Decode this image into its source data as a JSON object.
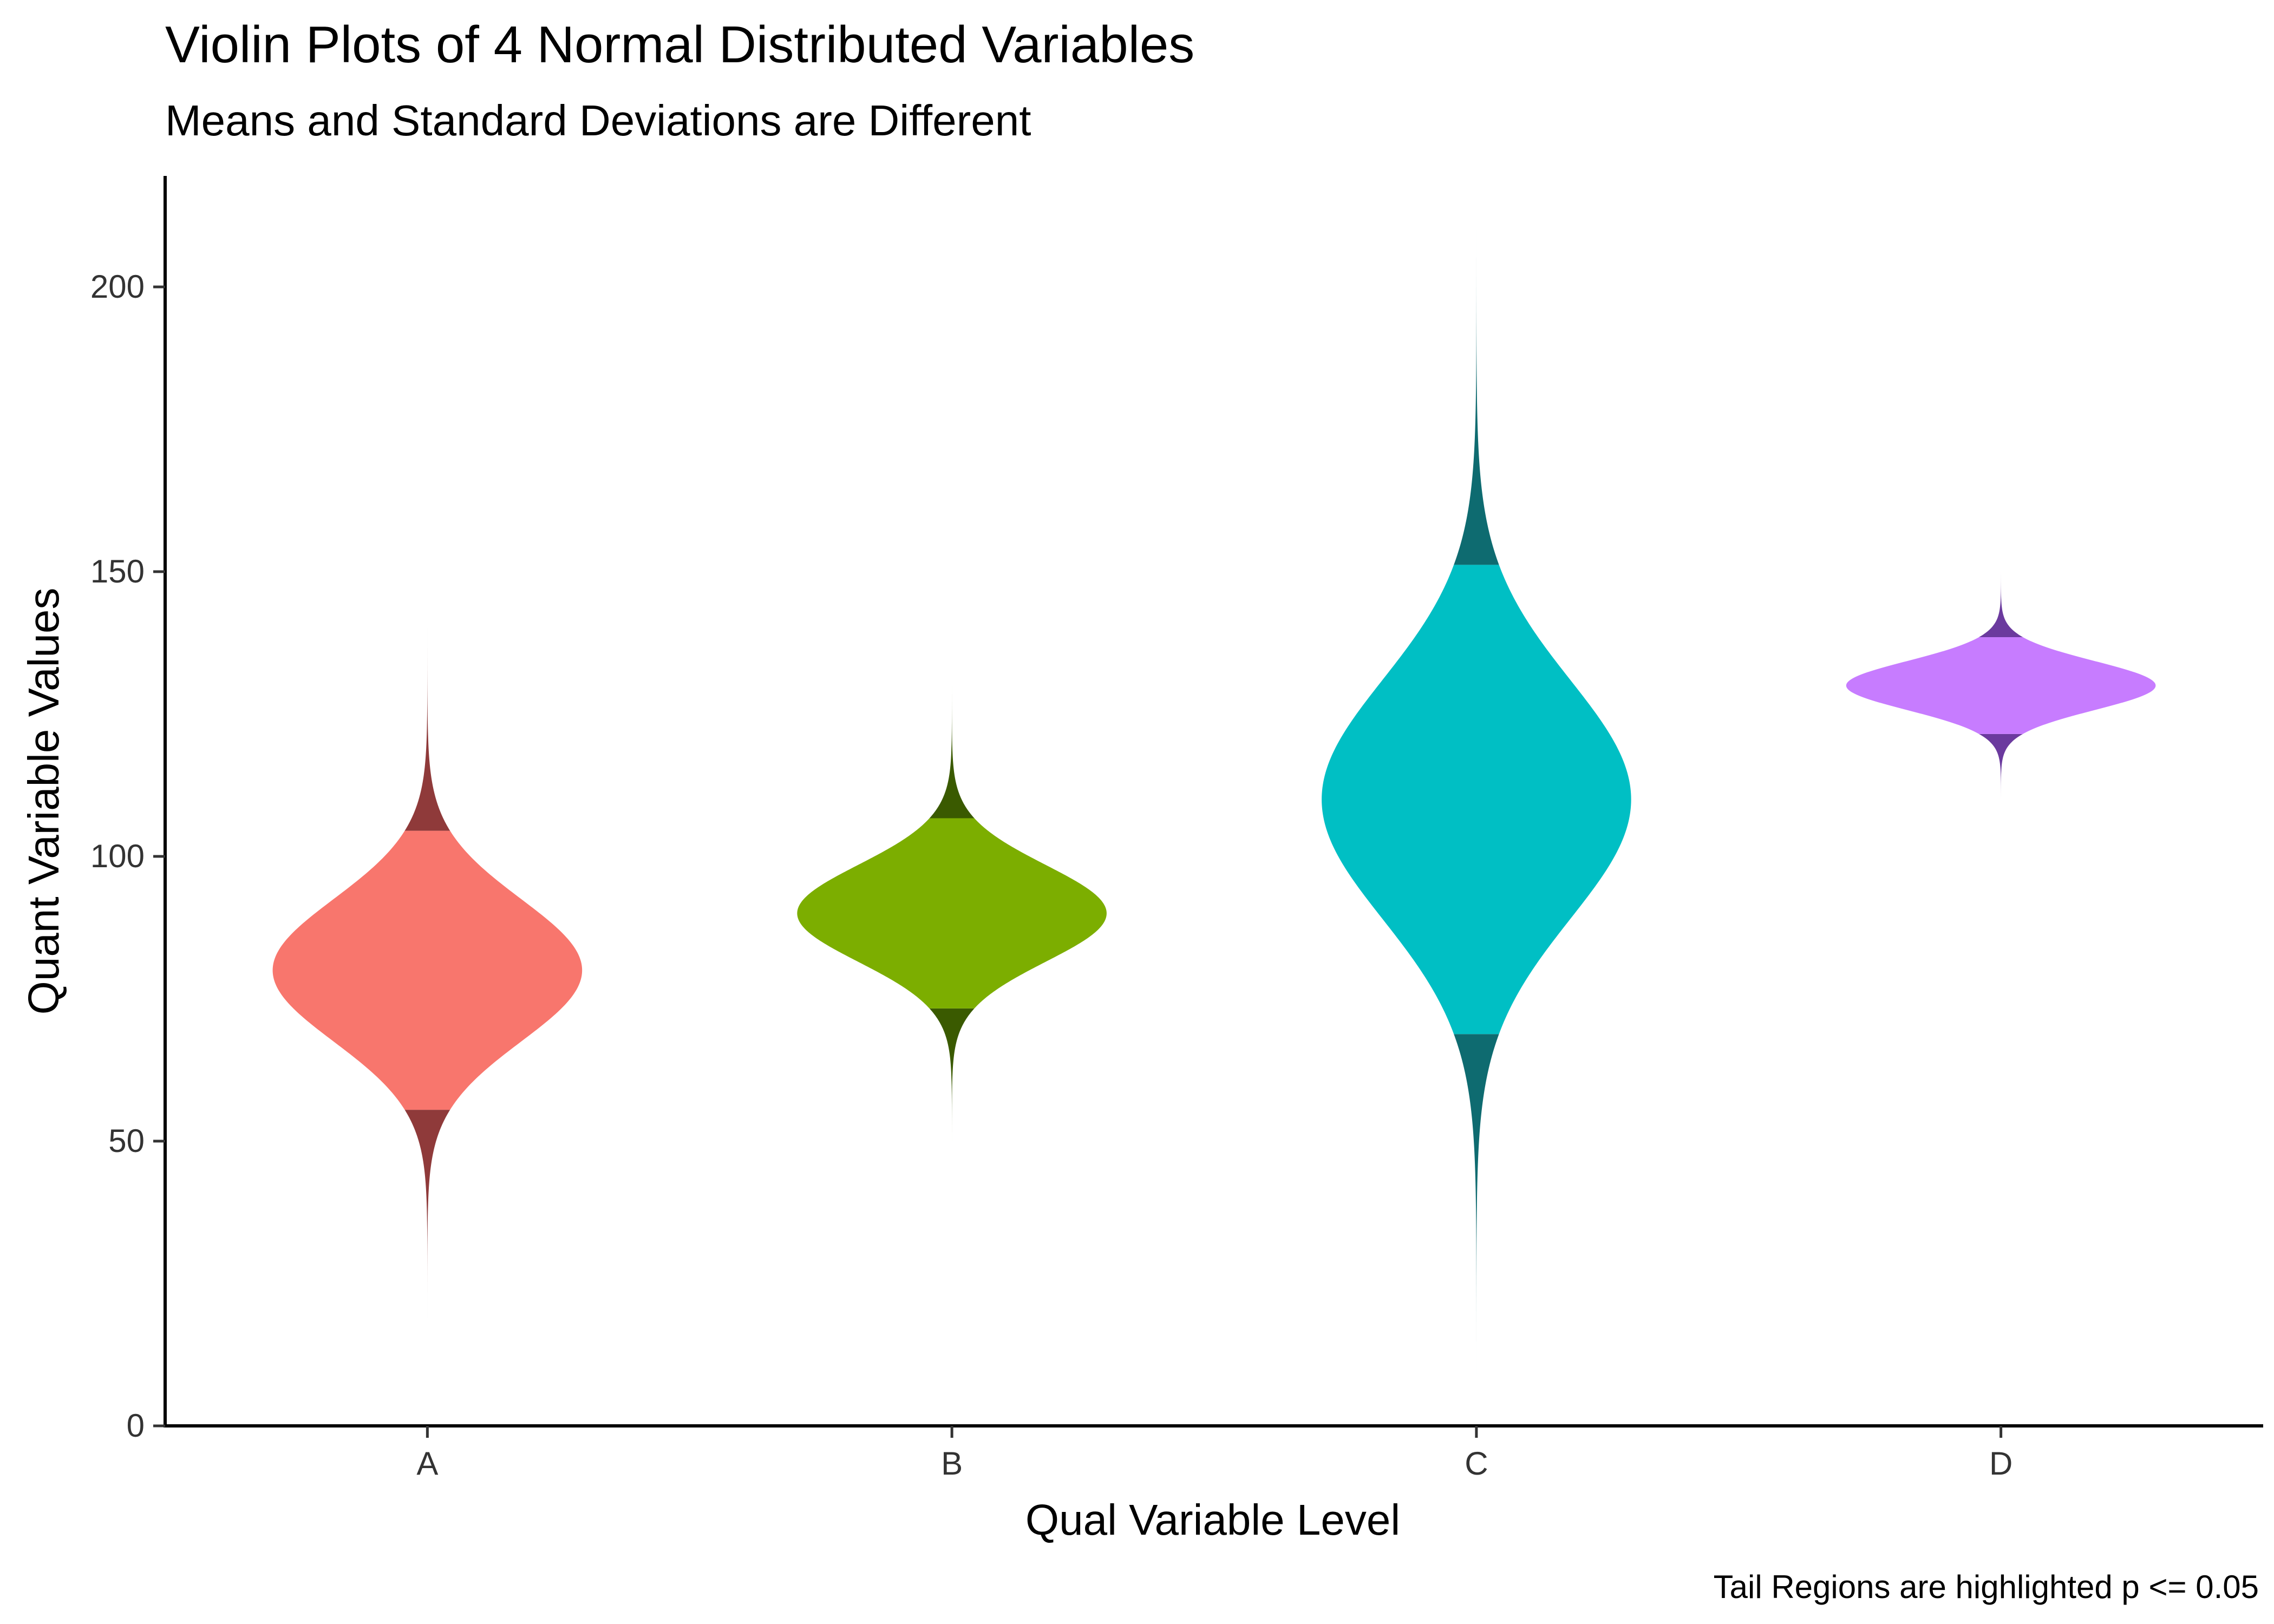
{
  "chart_data": {
    "type": "violin",
    "title": "Violin Plots of 4 Normal Distributed Variables",
    "subtitle": "Means and Standard Deviations are Different",
    "xlabel": "Qual Variable Level",
    "ylabel": "Quant Variable Values",
    "caption": "Tail Regions are highlighted p <= 0.05",
    "categories": [
      "A",
      "B",
      "C",
      "D"
    ],
    "y_ticks": [
      0,
      50,
      100,
      150,
      200
    ],
    "y_tick_labels": [
      "0",
      "50",
      "100",
      "150",
      "200"
    ],
    "ylim": [
      0,
      220
    ],
    "grid": false,
    "legend": "none",
    "tail_threshold": 0.05,
    "series": [
      {
        "category": "A",
        "mean": 80,
        "sd": 12.5,
        "min": 19,
        "max": 140,
        "lower_tail": 55.5,
        "upper_tail": 104.5,
        "color": "#F8766D",
        "tail_color": "#8F3A3A"
      },
      {
        "category": "B",
        "mean": 90,
        "sd": 8.5,
        "min": 50,
        "max": 130,
        "lower_tail": 73.3,
        "upper_tail": 106.7,
        "color": "#7CAE00",
        "tail_color": "#3A5A00"
      },
      {
        "category": "C",
        "mean": 110,
        "sd": 21,
        "min": 9,
        "max": 210,
        "lower_tail": 68.8,
        "upper_tail": 151.2,
        "color": "#00BFC4",
        "tail_color": "#0E6B70"
      },
      {
        "category": "D",
        "mean": 130,
        "sd": 4.3,
        "min": 110,
        "max": 150,
        "lower_tail": 121.5,
        "upper_tail": 138.5,
        "color": "#C77CFF",
        "tail_color": "#6B3A9E"
      }
    ]
  }
}
